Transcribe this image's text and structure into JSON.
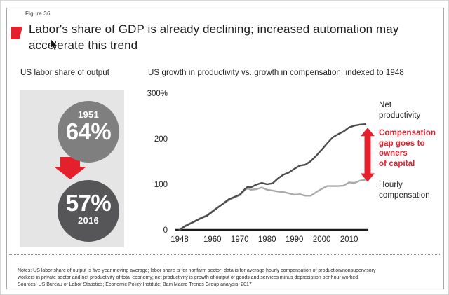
{
  "figure_label": "Figure 36",
  "title": "Labor's share of GDP is already declining; increased automation may\naccelerate this trend",
  "colors": {
    "red": "#e4202c",
    "circle_top": "#7f7f80",
    "circle_bottom": "#565658",
    "panel_bg": "#e5e5e6",
    "line_dark": "#4c4c4c",
    "line_light": "#aaaaab",
    "axis": "#1a1a1a",
    "text": "#1e1e1e"
  },
  "left_panel": {
    "heading": "US labor share of output",
    "start_year": "1951",
    "start_value": "64%",
    "end_year": "2016",
    "end_value": "57%"
  },
  "chart_data": {
    "type": "line",
    "title": "US growth in productivity vs. growth in compensation, indexed to 1948",
    "ylabel_top": "300%",
    "ylim": [
      0,
      300
    ],
    "xlim": [
      1948,
      2017
    ],
    "grid": false,
    "legend_position": "right-of-line-ends",
    "x": [
      1948,
      1950,
      1952,
      1954,
      1956,
      1958,
      1960,
      1962,
      1964,
      1966,
      1968,
      1970,
      1972,
      1973,
      1974,
      1976,
      1978,
      1980,
      1982,
      1984,
      1986,
      1988,
      1990,
      1992,
      1994,
      1996,
      1998,
      2000,
      2002,
      2004,
      2006,
      2008,
      2010,
      2012,
      2014,
      2016
    ],
    "series": [
      {
        "name": "Net\nproductivity",
        "color": "#4c4c4c",
        "values": [
          0,
          8,
          14,
          20,
          26,
          31,
          40,
          49,
          58,
          67,
          72,
          77,
          90,
          95,
          93,
          99,
          103,
          100,
          102,
          113,
          121,
          126,
          134,
          141,
          143,
          151,
          163,
          176,
          190,
          203,
          210,
          216,
          225,
          229,
          231,
          232
        ]
      },
      {
        "name": "Hourly\ncompensation",
        "color": "#aaaaab",
        "values": [
          0,
          9,
          15,
          21,
          27,
          32,
          41,
          50,
          57,
          65,
          71,
          76,
          88,
          91,
          88,
          89,
          93,
          88,
          86,
          84,
          83,
          80,
          77,
          78,
          75,
          75,
          83,
          90,
          96,
          96,
          96,
          97,
          104,
          103,
          108,
          110
        ]
      }
    ],
    "x_ticks": [
      1948,
      1960,
      1970,
      1980,
      1990,
      2000,
      2010
    ],
    "y_ticks": [
      {
        "label": "300%",
        "value": 300
      },
      {
        "label": "200",
        "value": 200
      },
      {
        "label": "100",
        "value": 100
      },
      {
        "label": "0",
        "value": 0
      }
    ],
    "annotation": "Compensation\ngap goes to\nowners\nof capital"
  },
  "notes": "Notes: US labor share of output is five-year moving average; labor share is for nonfarm sector; data is for average hourly compensation of production/nonsupervisory\nworkers in private sector and net productivity of total economy; net productivity is growth of output of goods and services minus depreciation per hour worked",
  "sources": "Sources: US Bureau of Labor Statistics; Economic Policy Institute; Bain Macro Trends Group analysis, 2017"
}
